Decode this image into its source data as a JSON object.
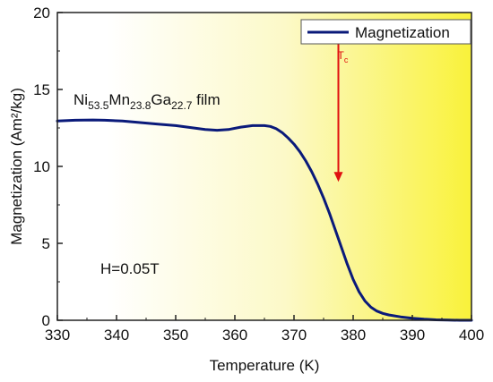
{
  "colors": {
    "line": "#0a1a7a",
    "arrow": "#e01010",
    "bg_white": "#ffffff",
    "bg_yellow": "#f9f23a"
  },
  "chart_data": {
    "type": "line",
    "xlabel": "Temperature (K)",
    "ylabel": "Magnetization (Am²/kg)",
    "xlim": [
      330,
      400
    ],
    "ylim": [
      0,
      20
    ],
    "xticks": [
      "330",
      "340",
      "350",
      "360",
      "370",
      "380",
      "390",
      "400"
    ],
    "yticks": [
      "0",
      "5",
      "10",
      "15",
      "20"
    ],
    "legend": {
      "position": "top-right",
      "label": "Magnetization"
    },
    "series": [
      {
        "name": "Magnetization",
        "x": [
          330,
          333,
          336,
          338,
          341,
          344,
          347,
          350,
          353,
          355,
          357,
          359,
          361,
          363,
          365,
          366,
          367,
          368,
          369,
          370,
          371,
          372,
          373,
          374,
          375,
          376,
          377,
          378,
          379,
          380,
          381,
          382,
          383,
          384,
          385,
          386,
          388,
          390,
          392,
          394,
          396,
          398,
          400
        ],
        "y": [
          12.95,
          13.0,
          13.02,
          13.0,
          12.95,
          12.85,
          12.75,
          12.65,
          12.5,
          12.4,
          12.35,
          12.4,
          12.55,
          12.65,
          12.65,
          12.6,
          12.45,
          12.2,
          11.85,
          11.45,
          10.95,
          10.35,
          9.65,
          8.85,
          7.95,
          6.95,
          5.85,
          4.75,
          3.65,
          2.65,
          1.85,
          1.25,
          0.85,
          0.6,
          0.45,
          0.35,
          0.22,
          0.13,
          0.07,
          0.03,
          0.01,
          0.0,
          0.0
        ]
      }
    ],
    "annotations": {
      "sample_main": "Ni",
      "sample_sub1": "53.5",
      "sample_mn": "Mn",
      "sample_sub2": "23.8",
      "sample_ga": "Ga",
      "sample_sub3": "22.7",
      "sample_suffix": " film",
      "field": "H=0.05T",
      "tc_main": "T",
      "tc_sub": "c",
      "tc_x": 377.5,
      "tc_y_top": 19.2,
      "tc_y_bottom": 9.0
    }
  }
}
